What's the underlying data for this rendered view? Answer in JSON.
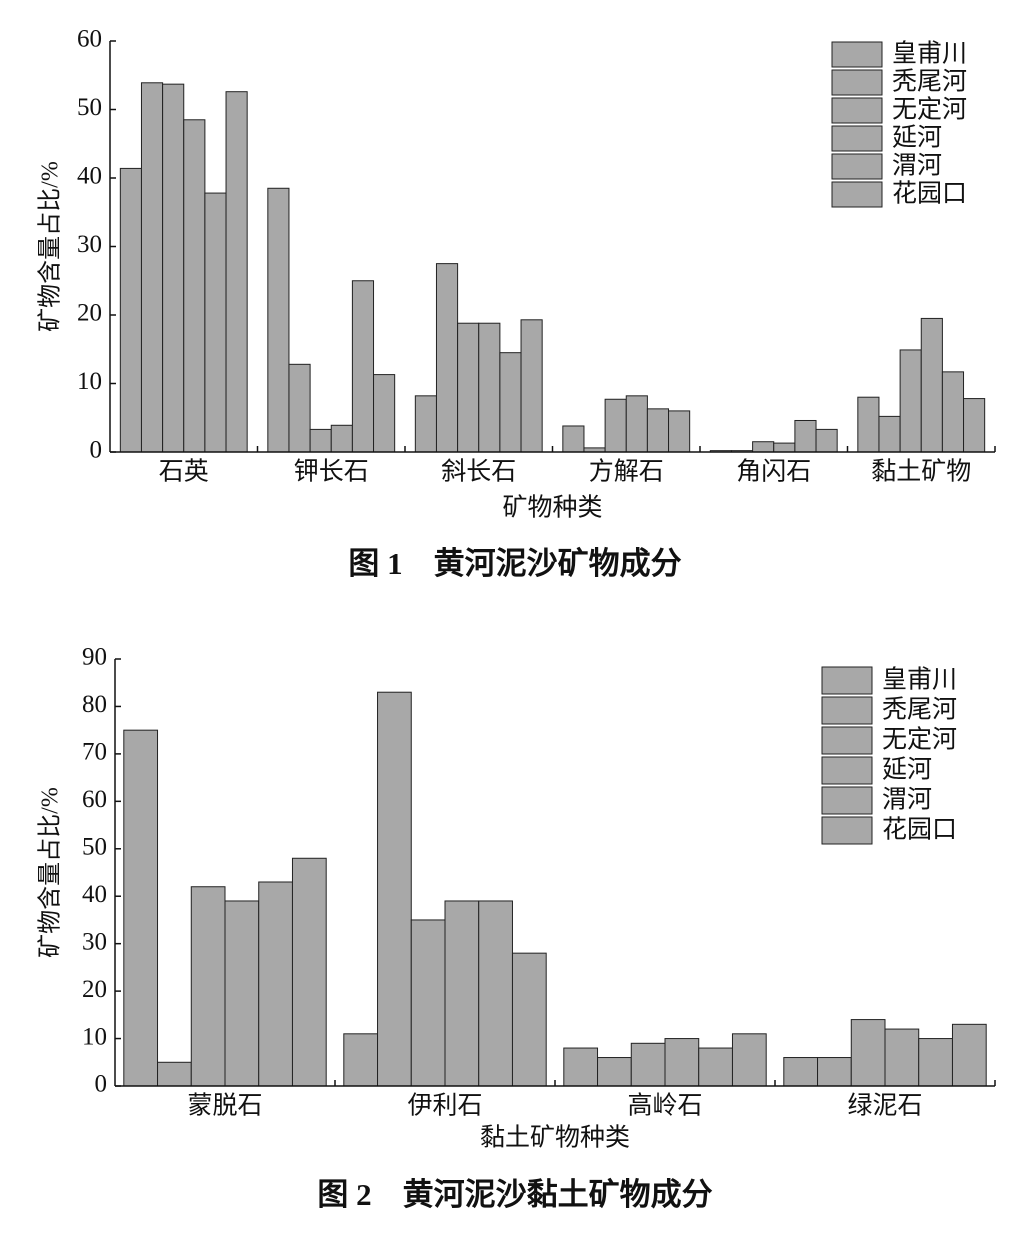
{
  "chart_data": [
    {
      "type": "bar",
      "caption": "图 1　黄河泥沙矿物成分",
      "y_label": "矿物含量占比/%",
      "x_label": "矿物种类",
      "categories": [
        "石英",
        "钾长石",
        "斜长石",
        "方解石",
        "角闪石",
        "黏土矿物"
      ],
      "ylim": [
        0,
        60
      ],
      "yticks": [
        0,
        10,
        20,
        30,
        40,
        50,
        60
      ],
      "legend": "upper-right",
      "series": [
        {
          "name": "皇甫川",
          "color": "#a8a8a8",
          "pattern": "none",
          "values": [
            41.4,
            38.5,
            8.2,
            3.8,
            0.2,
            8.0
          ]
        },
        {
          "name": "秃尾河",
          "color": "#b4b4b4",
          "pattern": "forward",
          "values": [
            53.9,
            12.8,
            27.5,
            0.6,
            0.2,
            5.2
          ]
        },
        {
          "name": "无定河",
          "color": "#b0b0b0",
          "pattern": "back",
          "values": [
            53.7,
            3.3,
            18.8,
            7.7,
            1.5,
            14.9
          ]
        },
        {
          "name": "延河",
          "color": "#acacac",
          "pattern": "cross",
          "values": [
            48.5,
            3.9,
            18.8,
            8.2,
            1.3,
            19.5
          ]
        },
        {
          "name": "渭河",
          "color": "#bcbcbc",
          "pattern": "dots",
          "values": [
            37.8,
            25.0,
            14.5,
            6.3,
            4.6,
            11.7
          ]
        },
        {
          "name": "花园口",
          "color": "#5a5a5a",
          "pattern": "dense",
          "values": [
            52.6,
            11.3,
            19.3,
            6.0,
            3.3,
            7.8
          ]
        }
      ]
    },
    {
      "type": "bar",
      "caption": "图 2　黄河泥沙黏土矿物成分",
      "y_label": "矿物含量占比/%",
      "x_label": "黏土矿物种类",
      "categories": [
        "蒙脱石",
        "伊利石",
        "高岭石",
        "绿泥石"
      ],
      "ylim": [
        0,
        90
      ],
      "yticks": [
        0,
        10,
        20,
        30,
        40,
        50,
        60,
        70,
        80,
        90
      ],
      "legend": "upper-right",
      "series": [
        {
          "name": "皇甫川",
          "color": "#a8a8a8",
          "pattern": "none",
          "values": [
            75,
            11,
            8,
            6
          ]
        },
        {
          "name": "秃尾河",
          "color": "#b4b4b4",
          "pattern": "forward",
          "values": [
            5,
            83,
            6,
            6
          ]
        },
        {
          "name": "无定河",
          "color": "#b0b0b0",
          "pattern": "back",
          "values": [
            42,
            35,
            9,
            14
          ]
        },
        {
          "name": "延河",
          "color": "#acacac",
          "pattern": "cross",
          "values": [
            39,
            39,
            10,
            12
          ]
        },
        {
          "name": "渭河",
          "color": "#bcbcbc",
          "pattern": "dots",
          "values": [
            43,
            39,
            8,
            10
          ]
        },
        {
          "name": "花园口",
          "color": "#5a5a5a",
          "pattern": "dense",
          "values": [
            48,
            28,
            11,
            13
          ]
        }
      ]
    }
  ]
}
